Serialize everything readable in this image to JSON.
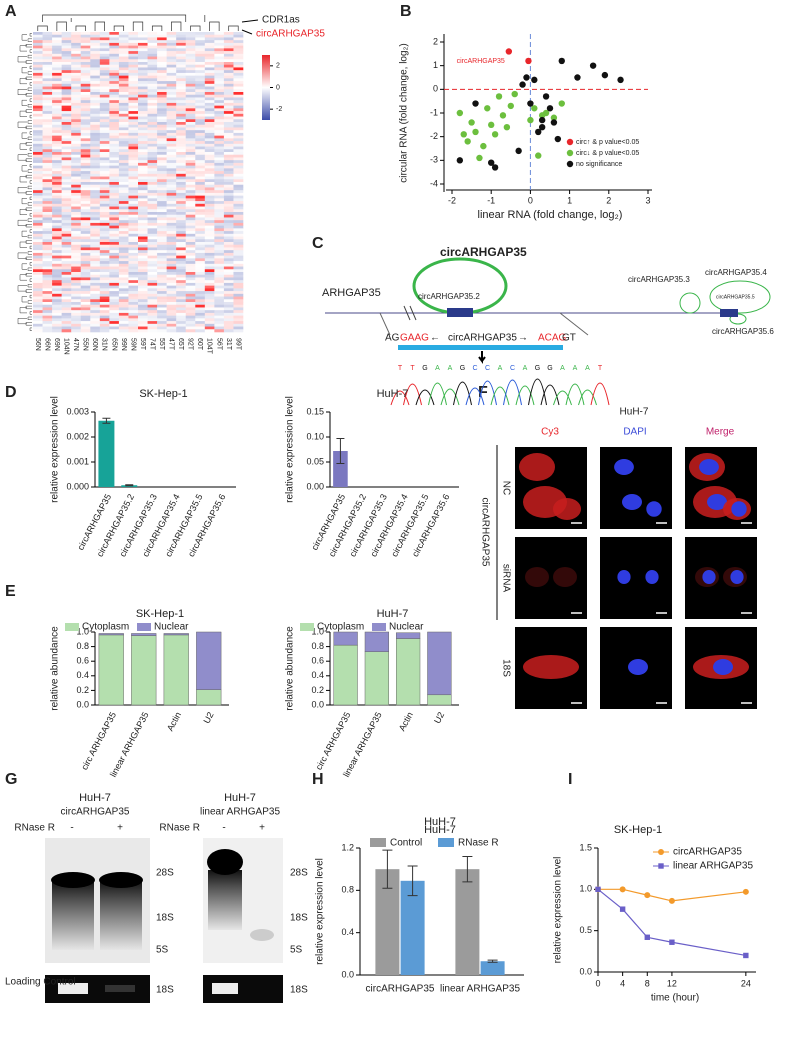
{
  "panel_labels": [
    "A",
    "B",
    "C",
    "D",
    "E",
    "F",
    "G",
    "H",
    "I"
  ],
  "heatmap": {
    "columns": [
      "56N",
      "66N",
      "69N",
      "104N",
      "47N",
      "55N",
      "60N",
      "31N",
      "65N",
      "99N",
      "59N",
      "59T",
      "74T",
      "55T",
      "47T",
      "65T",
      "92T",
      "60T",
      "104T",
      "56T",
      "31T",
      "99T"
    ],
    "labels": [
      "CDR1as",
      "circARHGAP35"
    ],
    "colorbar_lim": [
      -3,
      3
    ],
    "colorbar_ticks": [
      2,
      0,
      -2
    ]
  },
  "chart_data": [
    {
      "type": "scatter",
      "xlabel": "linear RNA (fold change, log₂)",
      "ylabel": "circular RNA (fold change, log₂)",
      "annotation": "circARHGAP35",
      "xlim": [
        -2,
        3
      ],
      "xticks": [
        -2,
        -1,
        0,
        1,
        2,
        3
      ],
      "ylim": [
        -4,
        2
      ],
      "yticks": [
        -4,
        -3,
        -2,
        -1,
        0,
        1,
        2
      ],
      "legend": "lower right",
      "series": [
        {
          "name": "circ↑ & p value<0.05",
          "color": "#e8262b",
          "x": [
            -0.55,
            -0.05
          ],
          "y": [
            1.6,
            1.2
          ]
        },
        {
          "name": "circ↓ & p value<0.05",
          "color": "#6cbf3e",
          "x": [
            -1.8,
            -1.7,
            -1.6,
            -1.5,
            -1.4,
            -1.3,
            -1.1,
            -1.0,
            -0.9,
            -0.8,
            -0.7,
            -0.6,
            -0.5,
            -0.4,
            0.0,
            0.1,
            0.2,
            0.3,
            0.4,
            0.6,
            0.8,
            -1.2
          ],
          "y": [
            -1.0,
            -1.9,
            -2.2,
            -1.4,
            -1.8,
            -2.9,
            -0.8,
            -1.5,
            -1.9,
            -0.3,
            -1.1,
            -1.6,
            -0.7,
            -0.2,
            -1.3,
            -0.8,
            -2.8,
            -1.1,
            -1.0,
            -1.2,
            -0.6,
            -2.4
          ]
        },
        {
          "name": "no significance",
          "color": "#111111",
          "x": [
            -1.8,
            -1.4,
            -1.0,
            -0.9,
            -0.3,
            -0.2,
            -0.1,
            0.0,
            0.1,
            0.2,
            0.3,
            0.4,
            0.5,
            0.7,
            0.8,
            1.2,
            1.6,
            1.9,
            2.3,
            0.6,
            0.3
          ],
          "y": [
            -3.0,
            -0.6,
            -3.1,
            -3.3,
            -2.6,
            0.2,
            0.5,
            -0.6,
            0.4,
            -1.8,
            -1.6,
            -0.3,
            -0.8,
            -2.1,
            1.2,
            0.5,
            1.0,
            0.6,
            0.4,
            -1.4,
            -1.3
          ]
        }
      ]
    },
    {
      "type": "bar",
      "title": "SK-Hep-1",
      "ylabel": "relative expression level",
      "color": "#17a398",
      "categories": [
        "circARHGAP35",
        "circARHGAP35.2",
        "circARHGAP35.3",
        "circARHGAP35.4",
        "circARHGAP35.5",
        "circARHGAP35.6"
      ],
      "values": [
        0.00265,
        7e-05,
        0,
        0,
        0,
        0
      ],
      "errors": [
        0.0001,
        2e-05,
        0,
        0,
        0,
        0
      ],
      "ylim": [
        0,
        0.003
      ],
      "yticks": [
        {
          "value": 0,
          "label": "0.000"
        },
        {
          "value": 0.001,
          "label": "0.001"
        },
        {
          "value": 0.002,
          "label": "0.002"
        },
        {
          "value": 0.003,
          "label": "0.003"
        }
      ]
    },
    {
      "type": "bar",
      "title": "HuH-7",
      "ylabel": "relative expression level",
      "color": "#7b78c0",
      "categories": [
        "circARHGAP35",
        "circARHGAP35.2",
        "circARHGAP35.3",
        "circARHGAP35.4",
        "circARHGAP35.5",
        "circARHGAP35.6"
      ],
      "values": [
        0.072,
        0,
        0,
        0,
        0,
        0
      ],
      "errors": [
        0.025,
        0,
        0,
        0,
        0,
        0
      ],
      "ylim": [
        0,
        0.15
      ],
      "yticks": [
        {
          "value": 0,
          "label": "0.00"
        },
        {
          "value": 0.05,
          "label": "0.05"
        },
        {
          "value": 0.1,
          "label": "0.10"
        },
        {
          "value": 0.15,
          "label": "0.15"
        }
      ]
    },
    {
      "type": "stacked",
      "title": "SK-Hep-1",
      "ylabel": "relative abundance",
      "categories": [
        "circ ARHGAP35",
        "linear ARHGAP35",
        "Actin",
        "U2"
      ],
      "series": [
        {
          "name": "Cytoplasm",
          "color": "#b4dfae",
          "values": [
            0.96,
            0.95,
            0.96,
            0.21
          ]
        },
        {
          "name": "Nuclear",
          "color": "#908dcb",
          "values": [
            0.02,
            0.03,
            0.02,
            0.79
          ]
        }
      ],
      "ylim": [
        0,
        1
      ],
      "yticks": [
        {
          "value": 0,
          "label": "0.0"
        },
        {
          "value": 0.2,
          "label": "0.2"
        },
        {
          "value": 0.4,
          "label": "0.4"
        },
        {
          "value": 0.6,
          "label": "0.6"
        },
        {
          "value": 0.8,
          "label": "0.8"
        },
        {
          "value": 1,
          "label": "1.0"
        }
      ]
    },
    {
      "type": "stacked",
      "title": "HuH-7",
      "ylabel": "relative abundance",
      "categories": [
        "circ ARHGAP35",
        "linear ARHGAP35",
        "Actin",
        "U2"
      ],
      "series": [
        {
          "name": "Cytoplasm",
          "color": "#b4dfae",
          "values": [
            0.82,
            0.73,
            0.91,
            0.14
          ]
        },
        {
          "name": "Nuclear",
          "color": "#908dcb",
          "values": [
            0.18,
            0.27,
            0.08,
            0.86
          ]
        }
      ],
      "ylim": [
        0,
        1
      ],
      "yticks": [
        {
          "value": 0,
          "label": "0.0"
        },
        {
          "value": 0.2,
          "label": "0.2"
        },
        {
          "value": 0.4,
          "label": "0.4"
        },
        {
          "value": 0.6,
          "label": "0.6"
        },
        {
          "value": 0.8,
          "label": "0.8"
        },
        {
          "value": 1,
          "label": "1.0"
        }
      ]
    },
    {
      "type": "grouped",
      "title": "HuH-7",
      "ylabel": "relative expression level",
      "categories": [
        "circARHGAP35",
        "linear ARHGAP35"
      ],
      "series": [
        {
          "name": "Control",
          "color": "#9b9b9b",
          "values": [
            1.0,
            1.0
          ],
          "errors": [
            0.18,
            0.12
          ]
        },
        {
          "name": "RNase R",
          "color": "#5b9bd5",
          "values": [
            0.89,
            0.13
          ],
          "errors": [
            0.14,
            0.01
          ]
        }
      ],
      "ylim": [
        0,
        1.2
      ],
      "yticks": [
        {
          "value": 0,
          "label": "0.0"
        },
        {
          "value": 0.4,
          "label": "0.4"
        },
        {
          "value": 0.8,
          "label": "0.8"
        },
        {
          "value": 1.2,
          "label": "1.2"
        }
      ]
    },
    {
      "type": "line",
      "title": "SK-Hep-1",
      "xlabel": "time (hour)",
      "ylabel": "relative expression level",
      "x": [
        0,
        4,
        8,
        12,
        24
      ],
      "xlim": [
        0,
        25
      ],
      "xticks": [
        0,
        4,
        8,
        12,
        24
      ],
      "ylim": [
        0,
        1.5
      ],
      "yticks": [
        {
          "value": 0,
          "label": "0.0"
        },
        {
          "value": 0.5,
          "label": "0.5"
        },
        {
          "value": 1,
          "label": "1.0"
        },
        {
          "value": 1.5,
          "label": "1.5"
        }
      ],
      "series": [
        {
          "name": "circARHGAP35",
          "color": "#f39a2b",
          "values": [
            1.0,
            1.0,
            0.93,
            0.86,
            0.97
          ]
        },
        {
          "name": "linear ARHGAP35",
          "color": "#6a5fc8",
          "values": [
            1.0,
            0.76,
            0.42,
            0.36,
            0.2
          ]
        }
      ]
    }
  ],
  "gene_diagram": {
    "title": "circARHGAP35",
    "gene": "ARHGAP35",
    "isoforms": [
      "circARHGAP35.2",
      "circARHGAP35.3",
      "circARHGAP35.4",
      "circARHGAP35.5",
      "circARHGAP35.6"
    ],
    "junction": [
      "AG",
      "GAAG",
      "←",
      "circARHGAP35",
      "→",
      "ACAG",
      "GT"
    ],
    "sequence": [
      "T",
      "T",
      "G",
      "A",
      "A",
      "G",
      "C",
      "C",
      "A",
      "C",
      "A",
      "G",
      "G",
      "A",
      "A",
      "A",
      "T"
    ]
  },
  "microscopy": {
    "title": "HuH-7",
    "columns": [
      "Cy3",
      "DAPI",
      "Merge"
    ],
    "group": "circARHGAP35",
    "rows": [
      "NC",
      "siRNA",
      "18S"
    ]
  },
  "northern": [
    {
      "cell": "HuH-7",
      "target": "circARHGAP35",
      "treatment": "RNase R",
      "lanes": [
        "-",
        "+"
      ],
      "markers": [
        "28S",
        "18S",
        "5S"
      ],
      "control_label": "Loading Control",
      "control_marker": "18S"
    },
    {
      "cell": "HuH-7",
      "target": "linear ARHGAP35",
      "treatment": "RNase R",
      "lanes": [
        "-",
        "+"
      ],
      "markers": [
        "28S",
        "18S",
        "5S"
      ],
      "control_marker": "18S"
    }
  ]
}
